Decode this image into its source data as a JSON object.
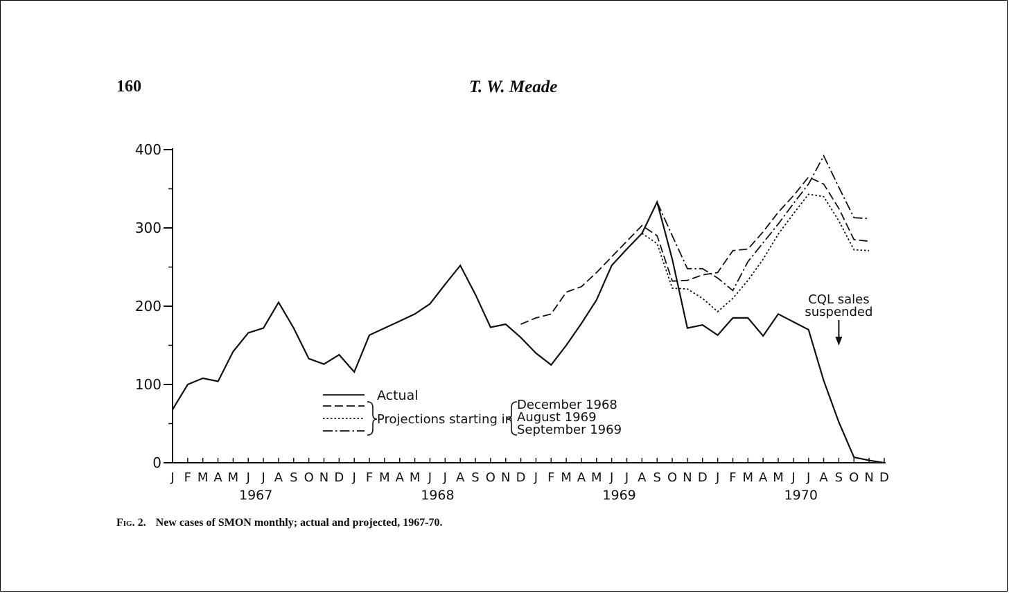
{
  "page": {
    "number": "160",
    "running_head": "T. W. Meade"
  },
  "caption": {
    "label": "Fig. 2.",
    "text": "New cases of SMON monthly; actual and projected, 1967-70."
  },
  "chart_data": {
    "type": "line",
    "title": "",
    "xlabel": "",
    "ylabel": "",
    "ylim": [
      0,
      400
    ],
    "yticks": [
      "0",
      "100",
      "200",
      "300",
      "400"
    ],
    "month_labels": [
      "J",
      "F",
      "M",
      "A",
      "M",
      "J",
      "J",
      "A",
      "S",
      "O",
      "N",
      "D"
    ],
    "years": [
      "1967",
      "1968",
      "1969",
      "1970"
    ],
    "x_start": "1967-01",
    "x_end": "1970-12",
    "grid": false,
    "legend": {
      "placement": "bottom-center",
      "actual_label": "Actual",
      "projections_label": "Projections starting in",
      "entries": [
        "December 1968",
        "August 1969",
        "September 1969"
      ]
    },
    "series": [
      {
        "name": "Actual",
        "style": "solid",
        "start": "1967-01",
        "values": [
          68,
          100,
          108,
          104,
          142,
          166,
          172,
          205,
          172,
          133,
          126,
          138,
          116,
          163,
          172,
          181,
          190,
          203,
          228,
          252,
          215,
          173,
          177,
          160,
          140,
          125,
          150,
          178,
          208,
          252,
          273,
          293,
          333,
          260,
          172,
          176,
          163,
          185,
          185,
          162,
          190,
          180,
          170,
          105,
          52,
          7,
          3,
          0
        ]
      },
      {
        "name": "December 1968",
        "style": "dashed",
        "start": "1968-12",
        "values": [
          177,
          185,
          190,
          218,
          225,
          243,
          263,
          283,
          303,
          290,
          232,
          233,
          240,
          243,
          271,
          273,
          295,
          320,
          341,
          365,
          356,
          325,
          285,
          283
        ]
      },
      {
        "name": "August 1969",
        "style": "dotted",
        "start": "1969-08",
        "values": [
          293,
          280,
          223,
          222,
          210,
          193,
          210,
          233,
          260,
          292,
          318,
          343,
          340,
          309,
          272,
          271
        ]
      },
      {
        "name": "September 1969",
        "style": "dash-dot",
        "start": "1969-09",
        "values": [
          333,
          290,
          248,
          248,
          236,
          220,
          257,
          281,
          305,
          331,
          356,
          392,
          352,
          313,
          312
        ]
      }
    ],
    "annotations": [
      {
        "text_line1": "CQL sales",
        "text_line2": "suspended",
        "at": "1970-09"
      }
    ]
  }
}
